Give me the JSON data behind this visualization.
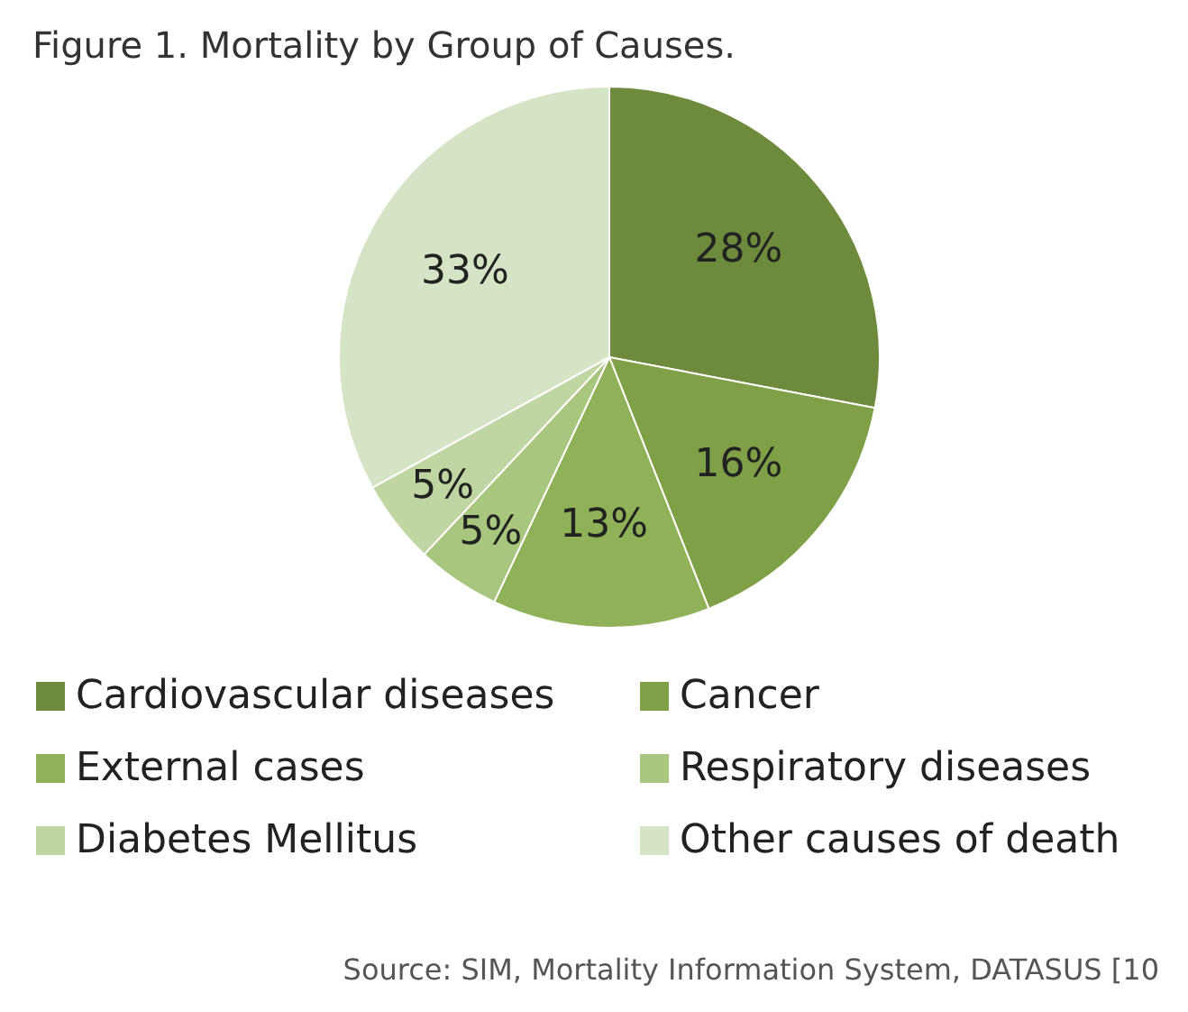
{
  "chart_data": {
    "type": "pie",
    "title": "Figure 1. Mortality by Group of Causes.",
    "categories": [
      "Cardiovascular diseases",
      "Cancer",
      "External cases",
      "Respiratory diseases",
      "Diabetes Mellitus",
      "Other causes of death"
    ],
    "values": [
      28,
      16,
      13,
      5,
      5,
      33
    ],
    "value_labels": [
      "28%",
      "16%",
      "13%",
      "5%",
      "5%",
      "33%"
    ],
    "colors": [
      "#6e8a3c",
      "#80a048",
      "#8fb157",
      "#a9c67e",
      "#bfd5a2",
      "#d6e4c6"
    ],
    "legend": "bottom",
    "annotations": [
      "Source: SIM, Mortality Information System, DATASUS [10"
    ]
  }
}
